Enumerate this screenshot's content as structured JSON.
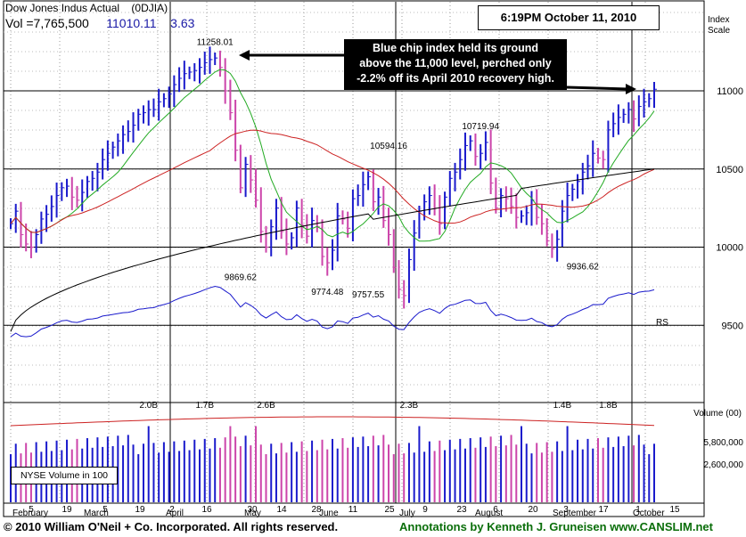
{
  "header": {
    "title": "Dow Jones Indus Actual    (0DJIA)",
    "vol_label": "Vol =7,765,500",
    "price": "11010.11",
    "change": "3.63",
    "timestamp": "6:19PM October 11, 2010",
    "index_scale_label": [
      "Index",
      "Scale"
    ]
  },
  "annotation": {
    "lines": [
      "Blue chip index held its ground",
      "above the 11,000 level, perched only",
      "-2.2% off its April 2010 recovery high."
    ]
  },
  "footer": {
    "copyright": "© 2010 William O'Neil + Co. Incorporated. All rights reserved.",
    "annotations": "Annotations by Kenneth J. Gruneisen www.CANSLIM.net"
  },
  "volume_box_label": "NYSE Volume in 100",
  "colors": {
    "up_bar": "#1a1acc",
    "down_bar": "#cc44aa",
    "ma50": "#22aa22",
    "ma200_red": "#cc2222",
    "ma200_black": "#000000",
    "rs_line": "#1a1acc"
  },
  "chart_data": {
    "type": "line",
    "subtype": "ohlc-price-volume",
    "y_axis_labels": [
      "11000",
      "10500",
      "10000",
      "9500"
    ],
    "ylim": [
      9000,
      11500
    ],
    "volume_axis_label": "Volume (00)",
    "volume_tick_labels": [
      "5,800,000",
      "2,600,000"
    ],
    "x_tick_labels": [
      "5",
      "19",
      "5",
      "19",
      "2",
      "16",
      "30",
      "14",
      "28",
      "11",
      "25",
      "9",
      "23",
      "6",
      "20",
      "3",
      "17",
      "1",
      "15"
    ],
    "month_labels": [
      "February",
      "March",
      "April",
      "May",
      "June",
      "July",
      "August",
      "September",
      "October"
    ],
    "price_labels": [
      {
        "text": "11258.01",
        "value": 11258.01
      },
      {
        "text": "9869.62",
        "value": 9869.62
      },
      {
        "text": "9774.48",
        "value": 9774.48
      },
      {
        "text": "9757.55",
        "value": 9757.55
      },
      {
        "text": "10594.16",
        "value": 10594.16
      },
      {
        "text": "10719.94",
        "value": 10719.94
      },
      {
        "text": "9936.62",
        "value": 9936.62
      }
    ],
    "volume_labels": [
      "2.0B",
      "1.7B",
      "2.6B",
      "2.3B",
      "1.4B",
      "1.8B"
    ],
    "rs_label": "RS",
    "close_series": [
      10150,
      10230,
      10080,
      10020,
      10000,
      10080,
      10180,
      10210,
      10260,
      10330,
      10380,
      10390,
      10320,
      10300,
      10350,
      10420,
      10440,
      10480,
      10560,
      10600,
      10640,
      10680,
      10720,
      10740,
      10780,
      10850,
      10860,
      10880,
      10880,
      10930,
      10950,
      10980,
      11040,
      11080,
      11110,
      11120,
      11130,
      11150,
      11180,
      11200,
      11210,
      11150,
      11000,
      10860,
      10620,
      10380,
      10530,
      10430,
      10300,
      10100,
      10000,
      10130,
      10250,
      10100,
      10020,
      10060,
      10250,
      10140,
      10070,
      10170,
      10130,
      9940,
      9900,
      9980,
      10200,
      10180,
      10120,
      10310,
      10330,
      10400,
      10450,
      10290,
      10320,
      10170,
      10080,
      9870,
      9730,
      9690,
      9920,
      10090,
      10230,
      10290,
      10330,
      10250,
      10150,
      10320,
      10440,
      10480,
      10560,
      10650,
      10680,
      10580,
      10600,
      10670,
      10410,
      10250,
      10330,
      10310,
      10260,
      10190,
      10200,
      10220,
      10300,
      10190,
      10150,
      10040,
      9990,
      10050,
      10230,
      10330,
      10370,
      10420,
      10480,
      10520,
      10600,
      10570,
      10560,
      10750,
      10790,
      10830,
      10850,
      10880,
      10820,
      10900,
      10930,
      10950,
      11010
    ]
  }
}
